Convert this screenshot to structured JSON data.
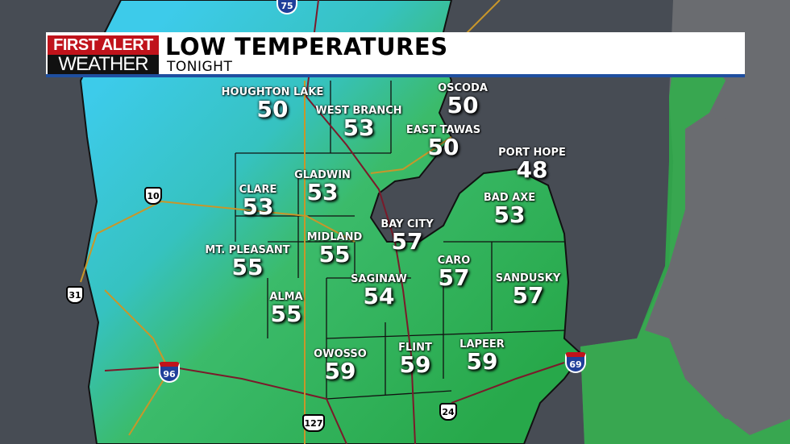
{
  "header": {
    "logo_top": "FIRST ALERT",
    "logo_bottom": "WEATHER",
    "title": "LOW TEMPERATURES",
    "subtitle": "TONIGHT"
  },
  "colors": {
    "brand_red": "#c0131b",
    "accent_blue": "#1f4fa0",
    "cool": "#3cc8e8",
    "warm": "#2aa84a",
    "water": "#474c54"
  },
  "cities": [
    {
      "name": "HOUGHTON LAKE",
      "temp": "50"
    },
    {
      "name": "WEST BRANCH",
      "temp": "53"
    },
    {
      "name": "OSCODA",
      "temp": "50"
    },
    {
      "name": "EAST TAWAS",
      "temp": "50"
    },
    {
      "name": "PORT HOPE",
      "temp": "48"
    },
    {
      "name": "GLADWIN",
      "temp": "53"
    },
    {
      "name": "CLARE",
      "temp": "53"
    },
    {
      "name": "BAD AXE",
      "temp": "53"
    },
    {
      "name": "BAY CITY",
      "temp": "57"
    },
    {
      "name": "MIDLAND",
      "temp": "55"
    },
    {
      "name": "MT. PLEASANT",
      "temp": "55"
    },
    {
      "name": "CARO",
      "temp": "57"
    },
    {
      "name": "SANDUSKY",
      "temp": "57"
    },
    {
      "name": "SAGINAW",
      "temp": "54"
    },
    {
      "name": "ALMA",
      "temp": "55"
    },
    {
      "name": "OWOSSO",
      "temp": "59"
    },
    {
      "name": "FLINT",
      "temp": "59"
    },
    {
      "name": "LAPEER",
      "temp": "59"
    }
  ],
  "highways": [
    {
      "type": "interstate",
      "number": "75"
    },
    {
      "type": "us",
      "number": "10"
    },
    {
      "type": "us",
      "number": "31"
    },
    {
      "type": "interstate",
      "number": "96"
    },
    {
      "type": "us",
      "number": "127"
    },
    {
      "type": "us",
      "number": "24"
    },
    {
      "type": "interstate",
      "number": "69"
    }
  ]
}
